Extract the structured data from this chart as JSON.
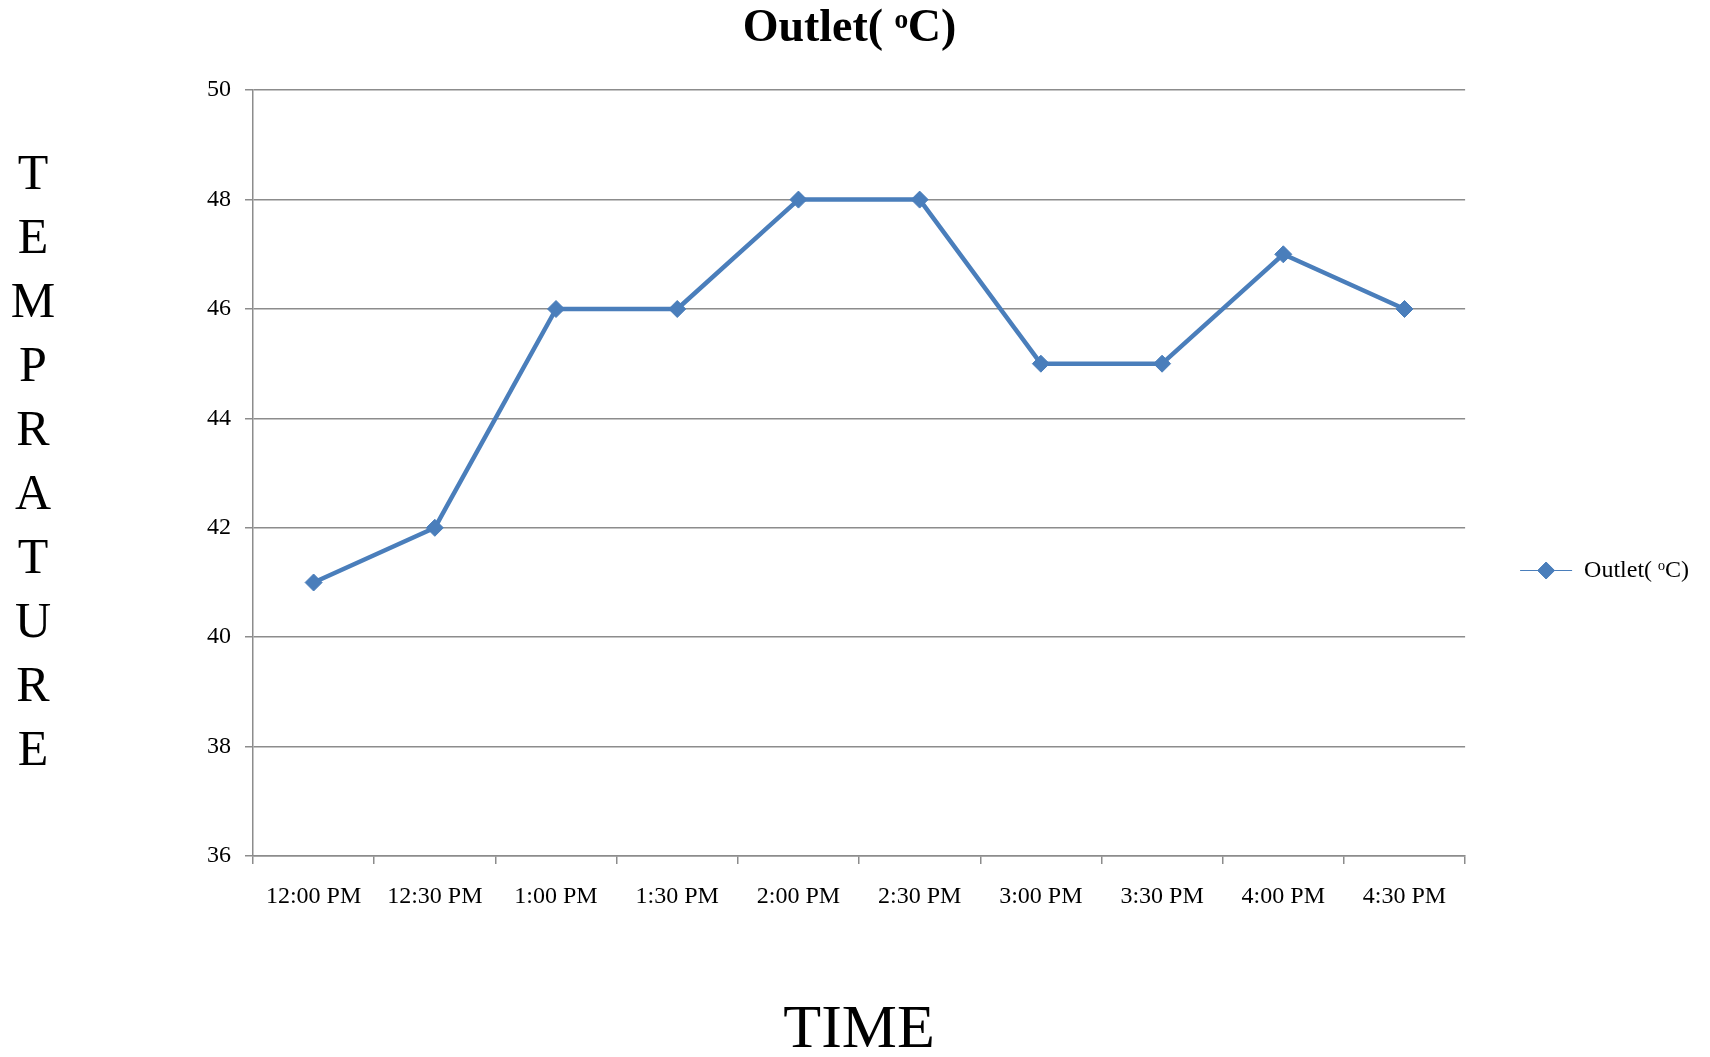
{
  "chart_data": {
    "type": "line",
    "title": "Outlet( ᵒC)",
    "xlabel": "TIME",
    "ylabel": "TEMPRATURE",
    "categories": [
      "12:00 PM",
      "12:30 PM",
      "1:00 PM",
      "1:30 PM",
      "2:00 PM",
      "2:30 PM",
      "3:00 PM",
      "3:30 PM",
      "4:00 PM",
      "4:30 PM"
    ],
    "series": [
      {
        "name": "Outlet( ᵒC)",
        "color": "#4a7ebb",
        "values": [
          41,
          42,
          46,
          46,
          48,
          48,
          45,
          45,
          47,
          46
        ]
      }
    ],
    "ylim": [
      36,
      50
    ],
    "yticks": [
      36,
      38,
      40,
      42,
      44,
      46,
      48,
      50
    ],
    "grid": "y",
    "legend": "right",
    "marker": "diamond",
    "line_style": "solid"
  }
}
